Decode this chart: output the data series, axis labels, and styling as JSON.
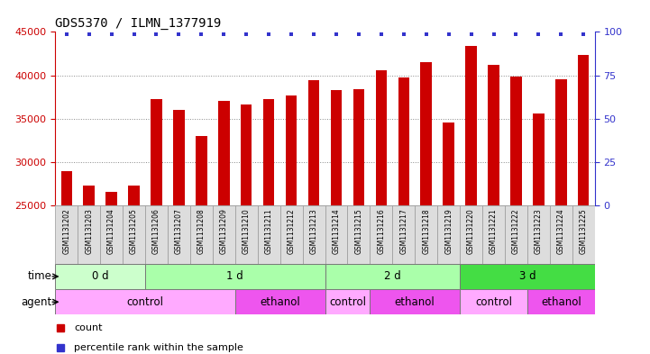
{
  "title": "GDS5370 / ILMN_1377919",
  "samples": [
    "GSM1131202",
    "GSM1131203",
    "GSM1131204",
    "GSM1131205",
    "GSM1131206",
    "GSM1131207",
    "GSM1131208",
    "GSM1131209",
    "GSM1131210",
    "GSM1131211",
    "GSM1131212",
    "GSM1131213",
    "GSM1131214",
    "GSM1131215",
    "GSM1131216",
    "GSM1131217",
    "GSM1131218",
    "GSM1131219",
    "GSM1131220",
    "GSM1131221",
    "GSM1131222",
    "GSM1131223",
    "GSM1131224",
    "GSM1131225"
  ],
  "counts": [
    28900,
    27300,
    26500,
    27300,
    37200,
    36000,
    33000,
    37000,
    36600,
    37200,
    37700,
    39400,
    38300,
    38400,
    40600,
    39700,
    41500,
    34500,
    43400,
    41200,
    39800,
    35600,
    39500,
    42300
  ],
  "bar_color": "#cc0000",
  "percentile_color": "#3333cc",
  "ylim_left": [
    25000,
    45000
  ],
  "ylim_right": [
    0,
    100
  ],
  "yticks_left": [
    25000,
    30000,
    35000,
    40000,
    45000
  ],
  "yticks_right": [
    0,
    25,
    50,
    75,
    100
  ],
  "bg_color": "#ffffff",
  "time_groups": [
    {
      "label": "0 d",
      "start": 0,
      "end": 4,
      "color": "#ccffcc"
    },
    {
      "label": "1 d",
      "start": 4,
      "end": 12,
      "color": "#aaffaa"
    },
    {
      "label": "2 d",
      "start": 12,
      "end": 18,
      "color": "#aaffaa"
    },
    {
      "label": "3 d",
      "start": 18,
      "end": 24,
      "color": "#44dd44"
    }
  ],
  "agent_groups": [
    {
      "label": "control",
      "start": 0,
      "end": 8,
      "color": "#ffaaff"
    },
    {
      "label": "ethanol",
      "start": 8,
      "end": 12,
      "color": "#ee55ee"
    },
    {
      "label": "control",
      "start": 12,
      "end": 14,
      "color": "#ffaaff"
    },
    {
      "label": "ethanol",
      "start": 14,
      "end": 18,
      "color": "#ee55ee"
    },
    {
      "label": "control",
      "start": 18,
      "end": 21,
      "color": "#ffaaff"
    },
    {
      "label": "ethanol",
      "start": 21,
      "end": 24,
      "color": "#ee55ee"
    }
  ],
  "left_axis_color": "#cc0000",
  "right_axis_color": "#3333cc",
  "title_fontsize": 10,
  "bar_width": 0.5
}
